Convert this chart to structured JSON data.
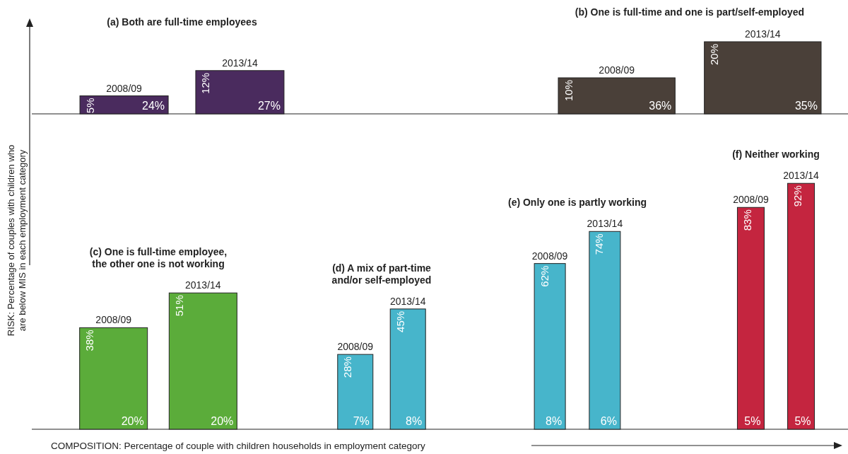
{
  "chart_data": [
    {
      "type": "bar",
      "title": "(a) Both are full-time employees",
      "ylabel": "RISK: Percentage of couples with children who are below MIS in each employment category",
      "categories": [
        "2008/09",
        "2013/14"
      ],
      "values": [
        5,
        12
      ],
      "value_labels": [
        "5%",
        "12%"
      ],
      "colors": [
        "#4a2b5e",
        "#4a2b5e"
      ],
      "annotations": [
        "24%",
        "27%"
      ]
    },
    {
      "type": "bar",
      "title": "(b) One is full-time and one is part/self-employed",
      "categories": [
        "2008/09",
        "2013/14"
      ],
      "values": [
        10,
        20
      ],
      "value_labels": [
        "10%",
        "20%"
      ],
      "colors": [
        "#4a4039",
        "#4a4039"
      ],
      "annotations": [
        "36%",
        "35%"
      ]
    },
    {
      "type": "bar",
      "title": "(c) One is full-time employee, the other one is not working",
      "xlabel": "COMPOSITION: Percentage of couple with children households in employment category",
      "categories": [
        "2008/09",
        "2013/14"
      ],
      "values": [
        38,
        51
      ],
      "value_labels": [
        "38%",
        "51%"
      ],
      "colors": [
        "#5bac3a",
        "#5bac3a"
      ],
      "annotations": [
        "20%",
        "20%"
      ]
    },
    {
      "type": "bar",
      "title": "(d) A mix of part-time and/or self-employed",
      "categories": [
        "2008/09",
        "2013/14"
      ],
      "values": [
        28,
        45
      ],
      "value_labels": [
        "28%",
        "45%"
      ],
      "colors": [
        "#47b5cb",
        "#47b5cb"
      ],
      "annotations": [
        "7%",
        "8%"
      ]
    },
    {
      "type": "bar",
      "title": "(e) Only one is partly working",
      "categories": [
        "2008/09",
        "2013/14"
      ],
      "values": [
        62,
        74
      ],
      "value_labels": [
        "62%",
        "74%"
      ],
      "colors": [
        "#47b5cb",
        "#47b5cb"
      ],
      "annotations": [
        "8%",
        "6%"
      ]
    },
    {
      "type": "bar",
      "title": "(f) Neither working",
      "categories": [
        "2008/09",
        "2013/14"
      ],
      "values": [
        83,
        92
      ],
      "value_labels": [
        "83%",
        "92%"
      ],
      "colors": [
        "#c4253f",
        "#c4253f"
      ],
      "annotations": [
        "5%",
        "5%"
      ]
    }
  ]
}
